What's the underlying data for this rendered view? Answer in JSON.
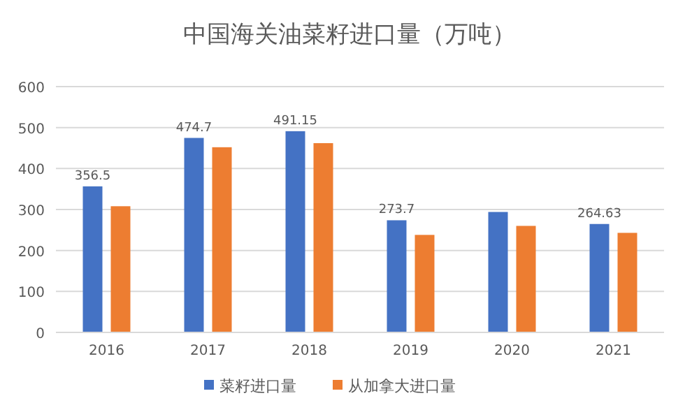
{
  "chart_data": {
    "type": "bar",
    "title": "中国海关油菜籽进口量（万吨）",
    "categories": [
      "2016",
      "2017",
      "2018",
      "2019",
      "2020",
      "2021"
    ],
    "series": [
      {
        "name": "菜籽进口量",
        "color": "#4472c4",
        "values": [
          356.5,
          474.7,
          491.15,
          273.7,
          294,
          264.63
        ],
        "value_labels": [
          "356.5",
          "474.7",
          "491.15",
          "273.7",
          null,
          "264.63"
        ]
      },
      {
        "name": "从加拿大进口量",
        "color": "#ed7d31",
        "values": [
          308,
          452,
          462,
          238,
          260,
          243
        ]
      }
    ],
    "ylim": [
      0,
      600
    ],
    "yticks": [
      0,
      100,
      200,
      300,
      400,
      500,
      600
    ],
    "grid": "y",
    "legend": "bottom"
  }
}
